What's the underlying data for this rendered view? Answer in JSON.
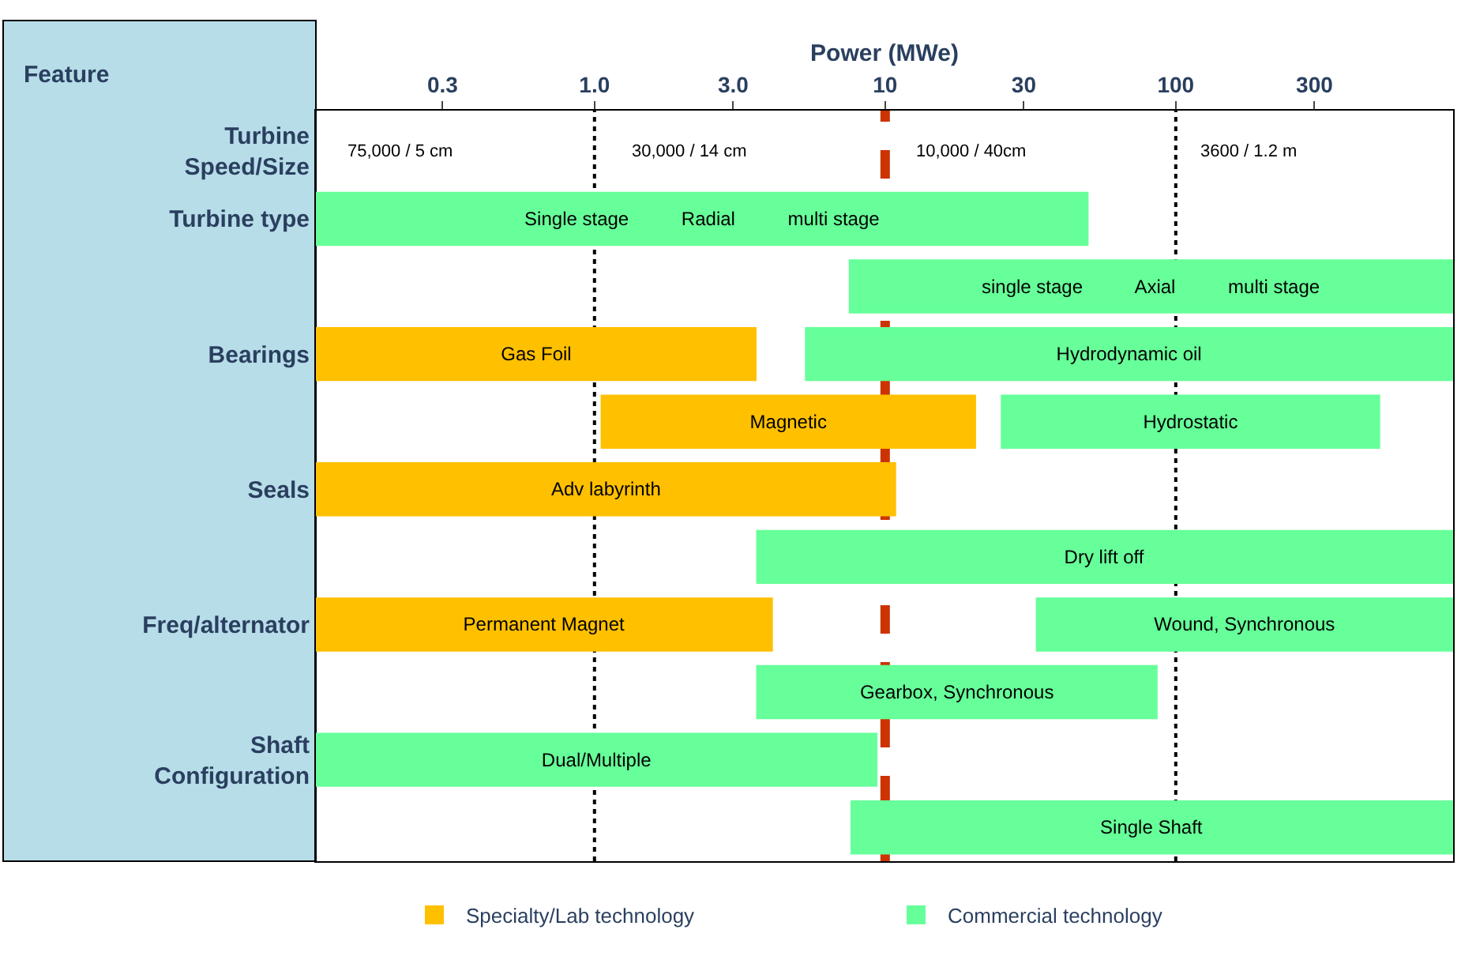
{
  "chart_data": {
    "type": "bar",
    "orientation": "horizontal",
    "log": "x",
    "xlabel": "Power (MWe)",
    "ylabel": "Feature",
    "categories": [
      "Turbine Speed/Size",
      "Turbine type",
      null,
      "Bearings",
      null,
      "Seals",
      null,
      "Freq/alternator",
      null,
      "Shaft Configuration",
      null
    ],
    "series": [
      {
        "name": "Specialty/Lab technology",
        "color": "#ffc000",
        "values": [
          null,
          null,
          null,
          3.5,
          19.5,
          10.8,
          null,
          4.0,
          null,
          null,
          null
        ],
        "base": [
          null,
          null,
          null,
          0.11,
          1.05,
          0.11,
          null,
          0.11,
          null,
          null,
          null
        ],
        "value_labels": [
          null,
          null,
          null,
          "Gas Foil",
          "Magnetic",
          "Adv labyrinth",
          null,
          "Permanent Magnet",
          null,
          null,
          null
        ]
      },
      {
        "name": "Commercial technology",
        "color": "#66ff99",
        "values": [
          null,
          50,
          892,
          894,
          480,
          null,
          896,
          867,
          83,
          9.3,
          892
        ],
        "base": [
          null,
          0.11,
          7.5,
          5.3,
          25,
          null,
          3.6,
          33,
          3.6,
          0.11,
          7.6
        ],
        "value_labels": [
          null,
          "Single stage          Radial          multi stage",
          "single stage          Axial          multi stage",
          "Hydrodynamic oil",
          "Hydrostatic",
          null,
          "Dry lift off",
          "Wound, Synchronous",
          "Gearbox, Synchronous",
          "Dual/Multiple",
          "Single Shaft"
        ]
      }
    ],
    "xlim": [
      0.11,
      900
    ],
    "xticks": [
      0.3,
      {
        "value": 1,
        "label": "1.0"
      },
      {
        "value": 3,
        "label": "3.0"
      },
      10,
      30,
      100,
      300
    ],
    "ref_lines": [
      {
        "axis": "x",
        "value": 1,
        "color": "#000000",
        "line_style": "dotted"
      },
      {
        "axis": "x",
        "value": 100,
        "color": "#000000",
        "line_style": "dotted"
      },
      {
        "axis": "x",
        "value": 10,
        "color": "#cc3300",
        "line_style": "dashed"
      }
    ],
    "annotations": [
      "75,000 / 5 cm",
      "30,000 / 14 cm",
      "10,000 / 40cm",
      "3600 / 1.2 m"
    ],
    "grid": false,
    "legend": "bottom"
  }
}
